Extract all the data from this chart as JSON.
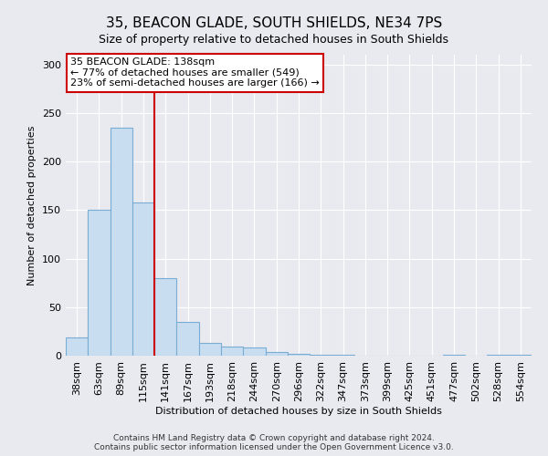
{
  "title1": "35, BEACON GLADE, SOUTH SHIELDS, NE34 7PS",
  "title2": "Size of property relative to detached houses in South Shields",
  "xlabel": "Distribution of detached houses by size in South Shields",
  "ylabel": "Number of detached properties",
  "footer1": "Contains HM Land Registry data © Crown copyright and database right 2024.",
  "footer2": "Contains public sector information licensed under the Open Government Licence v3.0.",
  "bin_labels": [
    "38sqm",
    "63sqm",
    "89sqm",
    "115sqm",
    "141sqm",
    "167sqm",
    "193sqm",
    "218sqm",
    "244sqm",
    "270sqm",
    "296sqm",
    "322sqm",
    "347sqm",
    "373sqm",
    "399sqm",
    "425sqm",
    "451sqm",
    "477sqm",
    "502sqm",
    "528sqm",
    "554sqm"
  ],
  "bar_values": [
    19,
    150,
    235,
    158,
    80,
    35,
    13,
    9,
    8,
    4,
    2,
    1,
    1,
    0,
    0,
    0,
    0,
    1,
    0,
    1,
    1
  ],
  "bar_color": "#c8ddf0",
  "bar_edgecolor": "#7aadd4",
  "bg_color": "#e8eaf0",
  "grid_color": "#ffffff",
  "annotation_box_text": "35 BEACON GLADE: 138sqm\n← 77% of detached houses are smaller (549)\n23% of semi-detached houses are larger (166) →",
  "annotation_box_color": "#ffffff",
  "annotation_box_edgecolor": "#cc0000",
  "vline_x": 3.5,
  "vline_color": "#cc0000",
  "ylim": [
    0,
    310
  ],
  "yticks": [
    0,
    50,
    100,
    150,
    200,
    250,
    300
  ],
  "title1_fontsize": 11,
  "title2_fontsize": 9,
  "ylabel_fontsize": 8,
  "xlabel_fontsize": 8,
  "tick_fontsize": 8,
  "ann_fontsize": 8,
  "footer_fontsize": 6.5
}
